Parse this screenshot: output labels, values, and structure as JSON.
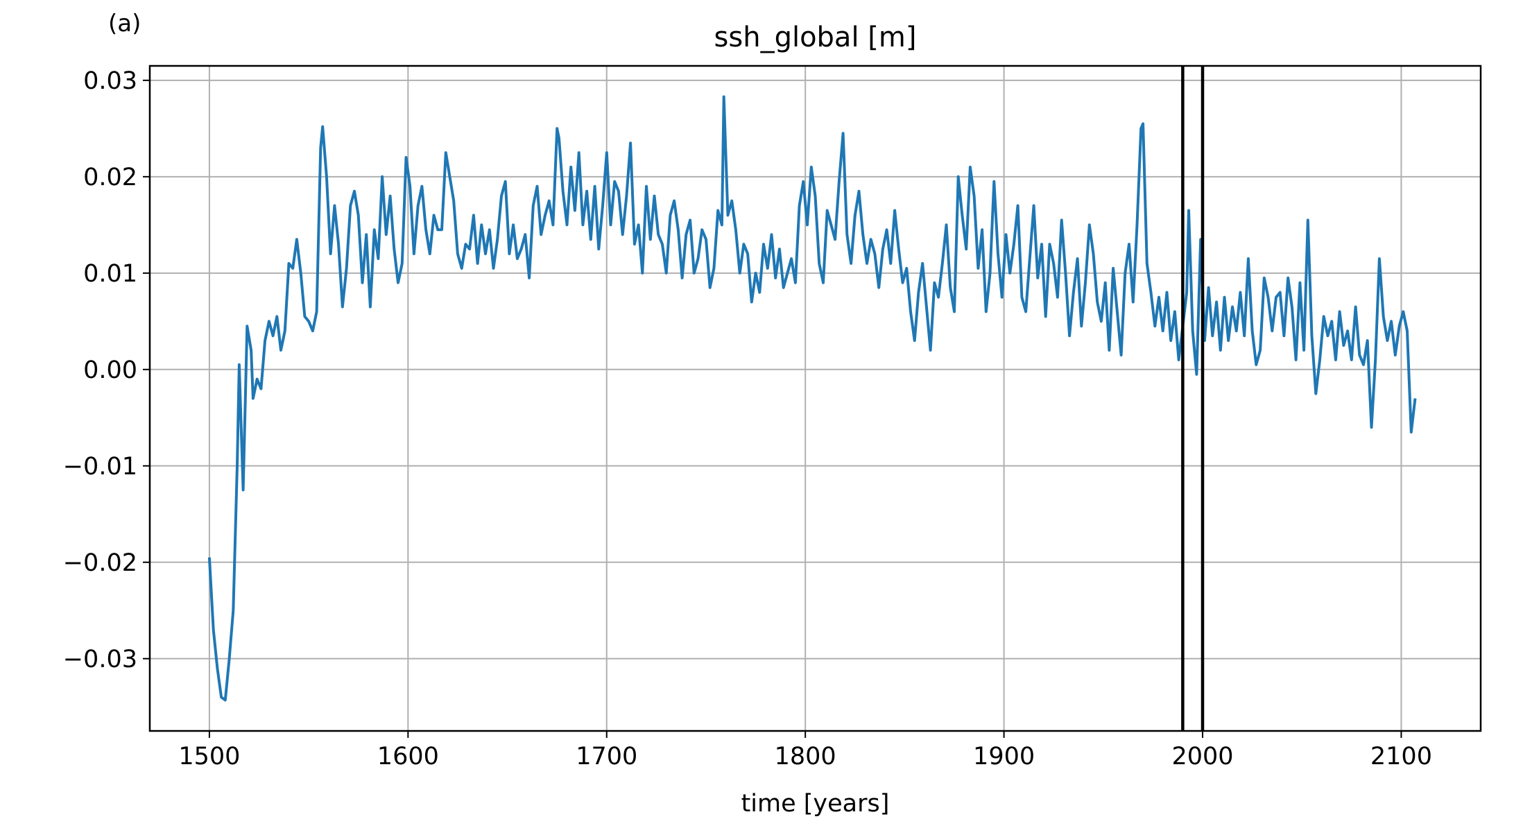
{
  "panel_label": "(a)",
  "chart_data": {
    "type": "line",
    "title": "ssh_global [m]",
    "xlabel": "time [years]",
    "ylabel": "",
    "xlim": [
      1470,
      2140
    ],
    "ylim": [
      -0.0375,
      0.0315
    ],
    "grid": true,
    "x_ticks": [
      1500,
      1600,
      1700,
      1800,
      1900,
      2000,
      2100
    ],
    "x_tick_labels": [
      "1500",
      "1600",
      "1700",
      "1800",
      "1900",
      "2000",
      "2100"
    ],
    "y_ticks": [
      -0.03,
      -0.02,
      -0.01,
      0.0,
      0.01,
      0.02,
      0.03
    ],
    "y_tick_labels": [
      "−0.03",
      "−0.02",
      "−0.01",
      "0.00",
      "0.01",
      "0.02",
      "0.03"
    ],
    "vlines": [
      1990,
      2000
    ],
    "series": [
      {
        "color": "#1f77b4",
        "points": [
          [
            1500,
            -0.0195
          ],
          [
            1502,
            -0.027
          ],
          [
            1504,
            -0.031
          ],
          [
            1506,
            -0.034
          ],
          [
            1508,
            -0.0343
          ],
          [
            1510,
            -0.03
          ],
          [
            1512,
            -0.025
          ],
          [
            1514,
            -0.01
          ],
          [
            1515,
            0.0005
          ],
          [
            1517,
            -0.0125
          ],
          [
            1519,
            0.0045
          ],
          [
            1521,
            0.002
          ],
          [
            1522,
            -0.003
          ],
          [
            1524,
            -0.001
          ],
          [
            1526,
            -0.002
          ],
          [
            1528,
            0.003
          ],
          [
            1530,
            0.005
          ],
          [
            1532,
            0.0035
          ],
          [
            1534,
            0.0055
          ],
          [
            1536,
            0.002
          ],
          [
            1538,
            0.004
          ],
          [
            1540,
            0.011
          ],
          [
            1542,
            0.0105
          ],
          [
            1544,
            0.0135
          ],
          [
            1546,
            0.01
          ],
          [
            1548,
            0.0055
          ],
          [
            1550,
            0.005
          ],
          [
            1552,
            0.004
          ],
          [
            1554,
            0.006
          ],
          [
            1556,
            0.023
          ],
          [
            1557,
            0.0252
          ],
          [
            1559,
            0.02
          ],
          [
            1561,
            0.012
          ],
          [
            1563,
            0.017
          ],
          [
            1565,
            0.013
          ],
          [
            1567,
            0.0065
          ],
          [
            1569,
            0.0105
          ],
          [
            1571,
            0.017
          ],
          [
            1573,
            0.0185
          ],
          [
            1575,
            0.016
          ],
          [
            1577,
            0.009
          ],
          [
            1579,
            0.014
          ],
          [
            1581,
            0.0065
          ],
          [
            1583,
            0.0145
          ],
          [
            1585,
            0.0115
          ],
          [
            1587,
            0.02
          ],
          [
            1589,
            0.014
          ],
          [
            1591,
            0.018
          ],
          [
            1593,
            0.0125
          ],
          [
            1595,
            0.009
          ],
          [
            1597,
            0.011
          ],
          [
            1599,
            0.022
          ],
          [
            1601,
            0.019
          ],
          [
            1603,
            0.012
          ],
          [
            1605,
            0.017
          ],
          [
            1607,
            0.019
          ],
          [
            1609,
            0.0145
          ],
          [
            1611,
            0.012
          ],
          [
            1613,
            0.016
          ],
          [
            1615,
            0.0145
          ],
          [
            1617,
            0.0145
          ],
          [
            1619,
            0.0225
          ],
          [
            1621,
            0.02
          ],
          [
            1623,
            0.0175
          ],
          [
            1625,
            0.012
          ],
          [
            1627,
            0.0105
          ],
          [
            1629,
            0.013
          ],
          [
            1631,
            0.0125
          ],
          [
            1633,
            0.016
          ],
          [
            1635,
            0.011
          ],
          [
            1637,
            0.015
          ],
          [
            1639,
            0.012
          ],
          [
            1641,
            0.0145
          ],
          [
            1643,
            0.0105
          ],
          [
            1645,
            0.0135
          ],
          [
            1647,
            0.018
          ],
          [
            1649,
            0.0195
          ],
          [
            1651,
            0.012
          ],
          [
            1653,
            0.015
          ],
          [
            1655,
            0.0115
          ],
          [
            1657,
            0.0125
          ],
          [
            1659,
            0.014
          ],
          [
            1661,
            0.0095
          ],
          [
            1663,
            0.017
          ],
          [
            1665,
            0.019
          ],
          [
            1667,
            0.014
          ],
          [
            1669,
            0.016
          ],
          [
            1671,
            0.0175
          ],
          [
            1673,
            0.015
          ],
          [
            1675,
            0.025
          ],
          [
            1676,
            0.024
          ],
          [
            1678,
            0.0185
          ],
          [
            1680,
            0.015
          ],
          [
            1682,
            0.021
          ],
          [
            1684,
            0.0165
          ],
          [
            1686,
            0.0225
          ],
          [
            1688,
            0.015
          ],
          [
            1690,
            0.0185
          ],
          [
            1692,
            0.0135
          ],
          [
            1694,
            0.019
          ],
          [
            1696,
            0.0125
          ],
          [
            1698,
            0.017
          ],
          [
            1700,
            0.0225
          ],
          [
            1702,
            0.015
          ],
          [
            1704,
            0.0195
          ],
          [
            1706,
            0.0185
          ],
          [
            1708,
            0.014
          ],
          [
            1710,
            0.018
          ],
          [
            1712,
            0.0235
          ],
          [
            1714,
            0.013
          ],
          [
            1716,
            0.015
          ],
          [
            1718,
            0.01
          ],
          [
            1720,
            0.019
          ],
          [
            1722,
            0.0135
          ],
          [
            1724,
            0.018
          ],
          [
            1726,
            0.014
          ],
          [
            1728,
            0.013
          ],
          [
            1730,
            0.01
          ],
          [
            1732,
            0.016
          ],
          [
            1734,
            0.0175
          ],
          [
            1736,
            0.0145
          ],
          [
            1738,
            0.0095
          ],
          [
            1740,
            0.014
          ],
          [
            1742,
            0.0155
          ],
          [
            1744,
            0.01
          ],
          [
            1746,
            0.0115
          ],
          [
            1748,
            0.0145
          ],
          [
            1750,
            0.0135
          ],
          [
            1752,
            0.0085
          ],
          [
            1754,
            0.0105
          ],
          [
            1756,
            0.0165
          ],
          [
            1758,
            0.015
          ],
          [
            1759,
            0.0283
          ],
          [
            1761,
            0.016
          ],
          [
            1763,
            0.0175
          ],
          [
            1765,
            0.0145
          ],
          [
            1767,
            0.01
          ],
          [
            1769,
            0.013
          ],
          [
            1771,
            0.012
          ],
          [
            1773,
            0.007
          ],
          [
            1775,
            0.01
          ],
          [
            1777,
            0.008
          ],
          [
            1779,
            0.013
          ],
          [
            1781,
            0.0105
          ],
          [
            1783,
            0.014
          ],
          [
            1785,
            0.0095
          ],
          [
            1787,
            0.0125
          ],
          [
            1789,
            0.0085
          ],
          [
            1791,
            0.01
          ],
          [
            1793,
            0.0115
          ],
          [
            1795,
            0.009
          ],
          [
            1797,
            0.017
          ],
          [
            1799,
            0.0195
          ],
          [
            1801,
            0.015
          ],
          [
            1803,
            0.021
          ],
          [
            1805,
            0.018
          ],
          [
            1807,
            0.011
          ],
          [
            1809,
            0.009
          ],
          [
            1811,
            0.0165
          ],
          [
            1813,
            0.015
          ],
          [
            1815,
            0.0135
          ],
          [
            1817,
            0.0195
          ],
          [
            1819,
            0.0245
          ],
          [
            1821,
            0.014
          ],
          [
            1823,
            0.011
          ],
          [
            1825,
            0.016
          ],
          [
            1827,
            0.0185
          ],
          [
            1829,
            0.014
          ],
          [
            1831,
            0.011
          ],
          [
            1833,
            0.0135
          ],
          [
            1835,
            0.012
          ],
          [
            1837,
            0.0085
          ],
          [
            1839,
            0.0125
          ],
          [
            1841,
            0.0145
          ],
          [
            1843,
            0.011
          ],
          [
            1845,
            0.0165
          ],
          [
            1847,
            0.0125
          ],
          [
            1849,
            0.009
          ],
          [
            1851,
            0.0105
          ],
          [
            1853,
            0.006
          ],
          [
            1855,
            0.003
          ],
          [
            1857,
            0.008
          ],
          [
            1859,
            0.011
          ],
          [
            1861,
            0.0065
          ],
          [
            1863,
            0.002
          ],
          [
            1865,
            0.009
          ],
          [
            1867,
            0.0075
          ],
          [
            1869,
            0.011
          ],
          [
            1871,
            0.015
          ],
          [
            1873,
            0.0085
          ],
          [
            1875,
            0.006
          ],
          [
            1877,
            0.02
          ],
          [
            1879,
            0.016
          ],
          [
            1881,
            0.0125
          ],
          [
            1883,
            0.021
          ],
          [
            1885,
            0.018
          ],
          [
            1887,
            0.0105
          ],
          [
            1889,
            0.0145
          ],
          [
            1891,
            0.006
          ],
          [
            1893,
            0.01
          ],
          [
            1895,
            0.0195
          ],
          [
            1897,
            0.012
          ],
          [
            1899,
            0.0075
          ],
          [
            1901,
            0.014
          ],
          [
            1903,
            0.01
          ],
          [
            1905,
            0.013
          ],
          [
            1907,
            0.017
          ],
          [
            1909,
            0.0075
          ],
          [
            1911,
            0.006
          ],
          [
            1913,
            0.0115
          ],
          [
            1915,
            0.017
          ],
          [
            1917,
            0.0095
          ],
          [
            1919,
            0.013
          ],
          [
            1921,
            0.0055
          ],
          [
            1923,
            0.013
          ],
          [
            1925,
            0.011
          ],
          [
            1927,
            0.0075
          ],
          [
            1929,
            0.0155
          ],
          [
            1931,
            0.01
          ],
          [
            1933,
            0.0035
          ],
          [
            1935,
            0.008
          ],
          [
            1937,
            0.0115
          ],
          [
            1939,
            0.0045
          ],
          [
            1941,
            0.009
          ],
          [
            1943,
            0.015
          ],
          [
            1945,
            0.012
          ],
          [
            1947,
            0.007
          ],
          [
            1949,
            0.005
          ],
          [
            1951,
            0.009
          ],
          [
            1953,
            0.002
          ],
          [
            1955,
            0.0105
          ],
          [
            1957,
            0.006
          ],
          [
            1959,
            0.0015
          ],
          [
            1961,
            0.01
          ],
          [
            1963,
            0.013
          ],
          [
            1965,
            0.007
          ],
          [
            1967,
            0.015
          ],
          [
            1969,
            0.025
          ],
          [
            1970,
            0.0255
          ],
          [
            1972,
            0.011
          ],
          [
            1974,
            0.008
          ],
          [
            1976,
            0.0045
          ],
          [
            1978,
            0.0075
          ],
          [
            1980,
            0.004
          ],
          [
            1982,
            0.008
          ],
          [
            1984,
            0.003
          ],
          [
            1986,
            0.006
          ],
          [
            1988,
            0.001
          ],
          [
            1990,
            0.0045
          ],
          [
            1992,
            0.008
          ],
          [
            1993,
            0.0165
          ],
          [
            1995,
            0.004
          ],
          [
            1997,
            -0.0005
          ],
          [
            1999,
            0.0135
          ],
          [
            2001,
            0.003
          ],
          [
            2003,
            0.0085
          ],
          [
            2005,
            0.0035
          ],
          [
            2007,
            0.007
          ],
          [
            2009,
            0.002
          ],
          [
            2011,
            0.0075
          ],
          [
            2013,
            0.003
          ],
          [
            2015,
            0.0065
          ],
          [
            2017,
            0.004
          ],
          [
            2019,
            0.008
          ],
          [
            2021,
            0.0035
          ],
          [
            2023,
            0.0115
          ],
          [
            2025,
            0.004
          ],
          [
            2027,
            0.0005
          ],
          [
            2029,
            0.002
          ],
          [
            2031,
            0.0095
          ],
          [
            2033,
            0.0075
          ],
          [
            2035,
            0.004
          ],
          [
            2037,
            0.0075
          ],
          [
            2039,
            0.008
          ],
          [
            2041,
            0.0035
          ],
          [
            2043,
            0.0095
          ],
          [
            2045,
            0.0065
          ],
          [
            2047,
            0.001
          ],
          [
            2049,
            0.009
          ],
          [
            2051,
            0.002
          ],
          [
            2053,
            0.0155
          ],
          [
            2055,
            0.0035
          ],
          [
            2057,
            -0.0025
          ],
          [
            2059,
            0.001
          ],
          [
            2061,
            0.0055
          ],
          [
            2063,
            0.0035
          ],
          [
            2065,
            0.005
          ],
          [
            2067,
            0.001
          ],
          [
            2069,
            0.006
          ],
          [
            2071,
            0.0025
          ],
          [
            2073,
            0.004
          ],
          [
            2075,
            0.001
          ],
          [
            2077,
            0.0065
          ],
          [
            2079,
            0.0015
          ],
          [
            2081,
            0.0005
          ],
          [
            2083,
            0.003
          ],
          [
            2085,
            -0.006
          ],
          [
            2087,
            0.001
          ],
          [
            2089,
            0.0115
          ],
          [
            2091,
            0.0055
          ],
          [
            2093,
            0.003
          ],
          [
            2095,
            0.005
          ],
          [
            2097,
            0.0015
          ],
          [
            2099,
            0.0045
          ],
          [
            2101,
            0.006
          ],
          [
            2103,
            0.004
          ],
          [
            2105,
            -0.0065
          ],
          [
            2107,
            -0.003
          ]
        ]
      }
    ]
  }
}
